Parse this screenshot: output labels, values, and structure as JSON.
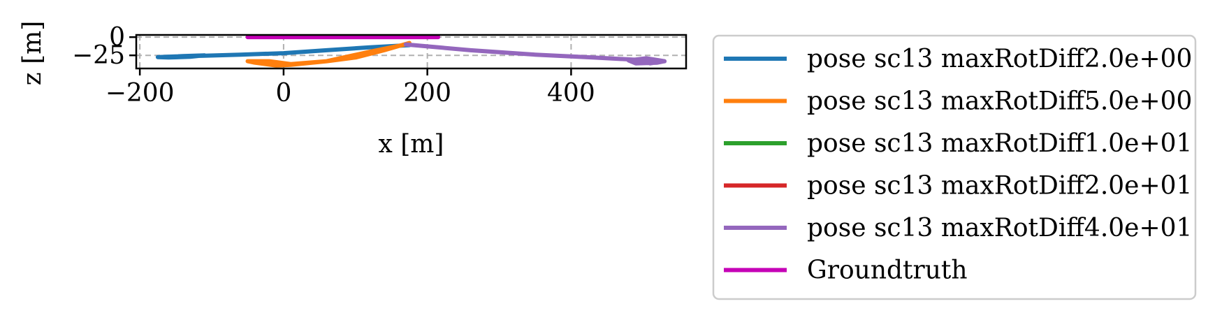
{
  "chart_data": {
    "type": "line",
    "title": "",
    "xlabel": "x [m]",
    "ylabel": "z [m]",
    "xlim": [
      -205,
      560
    ],
    "ylim": [
      -43,
      3
    ],
    "xticks": [
      -200,
      0,
      200,
      400
    ],
    "xtick_labels": [
      "−200",
      "0",
      "200",
      "400"
    ],
    "yticks": [
      0,
      -25
    ],
    "ytick_labels": [
      "0",
      "−25"
    ],
    "grid": "dashed",
    "legend_position": "outside-right",
    "series": [
      {
        "name": "pose sc13 maxRotDiff2.0e+00",
        "color": "#1f77b4",
        "x": [
          175,
          120,
          60,
          0,
          -60,
          -110,
          -150,
          -175,
          -160,
          -130,
          -110,
          -140,
          -170
        ],
        "y": [
          -11,
          -14,
          -18,
          -22,
          -24,
          -25.5,
          -26.5,
          -27.5,
          -28,
          -27,
          -25,
          -26,
          -27.5
        ]
      },
      {
        "name": "pose sc13 maxRotDiff5.0e+00",
        "color": "#ff7f0e",
        "x": [
          175,
          140,
          100,
          60,
          10,
          -10,
          -40,
          -50,
          -20,
          10,
          60,
          120,
          170
        ],
        "y": [
          -8,
          -18,
          -28,
          -33,
          -38,
          -39,
          -35,
          -33,
          -33,
          -37,
          -33,
          -20,
          -10
        ]
      },
      {
        "name": "pose sc13 maxRotDiff1.0e+01",
        "color": "#2ca02c",
        "x": [],
        "y": []
      },
      {
        "name": "pose sc13 maxRotDiff2.0e+01",
        "color": "#d62728",
        "x": [],
        "y": []
      },
      {
        "name": "pose sc13 maxRotDiff4.0e+01",
        "color": "#9467bd",
        "x": [
          170,
          260,
          350,
          430,
          490,
          530,
          520,
          490,
          480,
          505,
          530,
          510
        ],
        "y": [
          -10,
          -18,
          -24,
          -28,
          -31,
          -33,
          -35,
          -36,
          -32,
          -29,
          -33,
          -36
        ]
      },
      {
        "name": "Groundtruth",
        "color": "#c500b6",
        "x": [
          -50,
          0,
          50,
          100,
          150,
          200,
          215
        ],
        "y": [
          0,
          0,
          0,
          0,
          0,
          0,
          0
        ]
      }
    ]
  }
}
